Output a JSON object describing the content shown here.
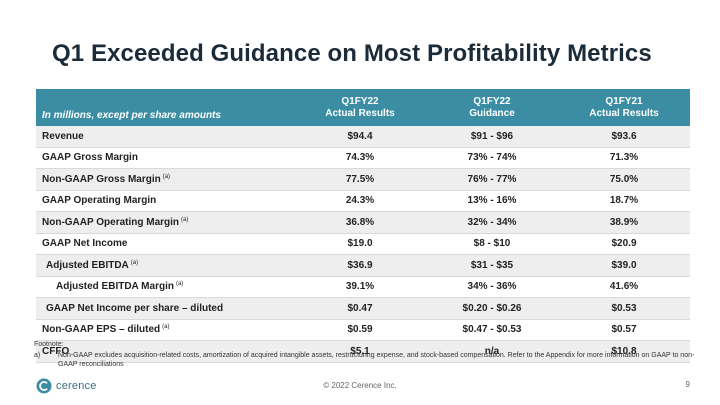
{
  "slide": {
    "title": "Q1 Exceeded Guidance on Most Profitability Metrics",
    "page_number": "9",
    "copyright": "© 2022 Cerence Inc.",
    "logo_text": "cerence",
    "accent_color": "#3a8da3"
  },
  "table": {
    "header": {
      "label": "In millions, except per share amounts",
      "col1_line1": "Q1FY22",
      "col1_line2": "Actual Results",
      "col2_line1": "Q1FY22",
      "col2_line2": "Guidance",
      "col3_line1": "Q1FY21",
      "col3_line2": "Actual Results"
    },
    "rows": [
      {
        "metric": "Revenue",
        "note": "",
        "actual": "$94.4",
        "guidance": "$91 - $96",
        "prior": "$93.6"
      },
      {
        "metric": "GAAP Gross Margin",
        "note": "",
        "actual": "74.3%",
        "guidance": "73% - 74%",
        "prior": "71.3%"
      },
      {
        "metric": "Non-GAAP Gross Margin",
        "note": "(a)",
        "actual": "77.5%",
        "guidance": "76% - 77%",
        "prior": "75.0%"
      },
      {
        "metric": "GAAP Operating Margin",
        "note": "",
        "actual": "24.3%",
        "guidance": "13% - 16%",
        "prior": "18.7%"
      },
      {
        "metric": "Non-GAAP Operating Margin",
        "note": "(a)",
        "actual": "36.8%",
        "guidance": "32% - 34%",
        "prior": "38.9%"
      },
      {
        "metric": "GAAP Net Income",
        "note": "",
        "actual": "$19.0",
        "guidance": "$8 - $10",
        "prior": "$20.9"
      },
      {
        "metric": "Adjusted EBITDA",
        "note": "(a)",
        "actual": "$36.9",
        "guidance": "$31 - $35",
        "prior": "$39.0"
      },
      {
        "metric": "Adjusted EBITDA Margin",
        "note": "(a)",
        "actual": "39.1%",
        "guidance": "34% - 36%",
        "prior": "41.6%"
      },
      {
        "metric": "GAAP Net Income per share – diluted",
        "note": "",
        "actual": "$0.47",
        "guidance": "$0.20 - $0.26",
        "prior": "$0.53"
      },
      {
        "metric": "Non-GAAP EPS – diluted",
        "note": "(a)",
        "actual": "$0.59",
        "guidance": "$0.47 - $0.53",
        "prior": "$0.57"
      },
      {
        "metric": "CFFO",
        "note": "",
        "actual": "$5.1",
        "guidance": "n/a",
        "prior": "$10.8"
      }
    ]
  },
  "footnote": {
    "heading": "Footnote:",
    "letter": "a)",
    "text": "Non-GAAP excludes acquisition-related costs, amortization of acquired intangible assets, restructuring expense, and stock-based compensation.  Refer to the Appendix for more information on GAAP to non-GAAP reconciliations"
  }
}
